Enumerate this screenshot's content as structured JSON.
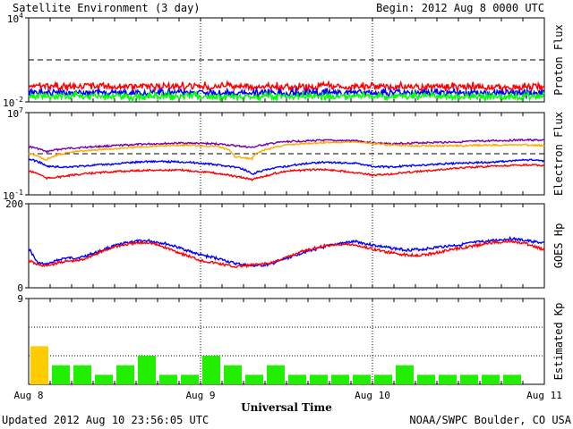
{
  "header": {
    "title": "Satellite Environment (3 day)",
    "begin": "Begin:  2012 Aug 8 0000 UTC"
  },
  "footer": {
    "updated": "Updated 2012 Aug 10 23:56:05 UTC",
    "source": "NOAA/SWPC Boulder, CO USA"
  },
  "colors": {
    "red": "#ff0000",
    "blue": "#0000ff",
    "green": "#00ff00",
    "purple": "#7700aa",
    "orange": "#ffaa00",
    "kp_normal": "#22ee00",
    "kp_active": "#ffcc00"
  },
  "chart_data": [
    {
      "type": "line",
      "panel": "proton",
      "ylabel": "Proton Flux",
      "yscale": "log",
      "ylim": [
        0.01,
        10000
      ],
      "yticks": [
        {
          "value": 10000,
          "base": "10",
          "exp": "4"
        },
        {
          "value": 0.01,
          "base": "10",
          "exp": "-2"
        }
      ],
      "threshold": 10,
      "x": [
        0,
        0.5,
        1,
        1.5,
        2,
        2.5,
        3
      ],
      "series": [
        {
          "color": "red",
          "values": [
            0.13,
            0.13,
            0.12,
            0.12,
            0.12,
            0.12,
            0.12
          ]
        },
        {
          "color": "blue",
          "values": [
            0.045,
            0.045,
            0.045,
            0.045,
            0.045,
            0.045,
            0.045
          ]
        },
        {
          "color": "green",
          "values": [
            0.025,
            0.025,
            0.025,
            0.025,
            0.025,
            0.025,
            0.025
          ]
        }
      ]
    },
    {
      "type": "line",
      "panel": "electron",
      "ylabel": "Electron Flux",
      "yscale": "log",
      "ylim": [
        0.1,
        10000000
      ],
      "yticks": [
        {
          "value": 10000000,
          "base": "10",
          "exp": "7"
        },
        {
          "value": 0.1,
          "base": "10",
          "exp": "-1"
        }
      ],
      "threshold": 1000,
      "x": [
        0,
        0.1,
        0.2,
        0.3,
        0.5,
        0.7,
        0.9,
        1.0,
        1.1,
        1.2,
        1.3,
        1.4,
        1.5,
        1.7,
        1.9,
        2.0,
        2.1,
        2.3,
        2.5,
        2.7,
        2.9,
        3.0
      ],
      "series": [
        {
          "color": "purple",
          "values": [
            5000,
            1500,
            3000,
            4000,
            6000,
            9000,
            11000,
            10000,
            9000,
            6000,
            4000,
            9000,
            15000,
            20000,
            18000,
            12000,
            9000,
            12000,
            14000,
            18000,
            22000,
            20000
          ]
        },
        {
          "color": "orange",
          "values": [
            1000,
            200,
            1000,
            1800,
            3000,
            5000,
            7000,
            6000,
            5000,
            500,
            300,
            3000,
            7000,
            12000,
            14000,
            10000,
            7000,
            6000,
            6000,
            7000,
            7000,
            6000
          ]
        },
        {
          "color": "blue",
          "values": [
            300,
            60,
            50,
            60,
            100,
            180,
            160,
            120,
            80,
            50,
            10,
            30,
            60,
            150,
            120,
            60,
            50,
            80,
            120,
            150,
            250,
            200
          ]
        },
        {
          "color": "red",
          "values": [
            20,
            4,
            6,
            10,
            18,
            25,
            25,
            18,
            12,
            6,
            3,
            8,
            20,
            30,
            15,
            8,
            10,
            20,
            40,
            60,
            80,
            70
          ]
        }
      ]
    },
    {
      "type": "line",
      "panel": "hp",
      "ylabel": "GOES Hp",
      "yscale": "linear",
      "ylim": [
        0,
        200
      ],
      "yticks": [
        {
          "value": 200,
          "label": "200"
        },
        {
          "value": 0,
          "label": "0"
        }
      ],
      "x": [
        0,
        0.05,
        0.1,
        0.2,
        0.3,
        0.4,
        0.5,
        0.6,
        0.7,
        0.8,
        0.9,
        1.0,
        1.1,
        1.2,
        1.3,
        1.4,
        1.5,
        1.6,
        1.7,
        1.8,
        1.9,
        2.0,
        2.1,
        2.2,
        2.3,
        2.4,
        2.5,
        2.6,
        2.7,
        2.8,
        2.9,
        3.0
      ],
      "series": [
        {
          "color": "blue",
          "values": [
            95,
            60,
            55,
            70,
            72,
            85,
            100,
            110,
            112,
            105,
            92,
            78,
            70,
            58,
            52,
            55,
            70,
            85,
            95,
            105,
            110,
            102,
            95,
            90,
            92,
            98,
            102,
            108,
            112,
            117,
            112,
            106
          ]
        },
        {
          "color": "red",
          "values": [
            65,
            55,
            52,
            62,
            65,
            82,
            98,
            105,
            108,
            95,
            80,
            65,
            58,
            50,
            54,
            58,
            72,
            88,
            98,
            104,
            102,
            92,
            84,
            78,
            78,
            86,
            94,
            100,
            108,
            110,
            104,
            90
          ]
        }
      ]
    },
    {
      "type": "bar",
      "panel": "kp",
      "ylabel": "Estimated Kp",
      "ylim": [
        0,
        9
      ],
      "yticks": [
        {
          "value": 9,
          "label": "9"
        }
      ],
      "values": [
        4,
        2,
        2,
        1,
        2,
        3,
        1,
        1,
        3,
        2,
        1,
        2,
        1,
        1,
        1,
        1,
        1,
        2,
        1,
        1,
        1,
        1,
        1
      ],
      "highlight_threshold": 4
    }
  ],
  "xaxis": {
    "ticks": [
      "Aug 8",
      "Aug 9",
      "Aug 10",
      "Aug 11"
    ],
    "label": "Universal Time"
  }
}
